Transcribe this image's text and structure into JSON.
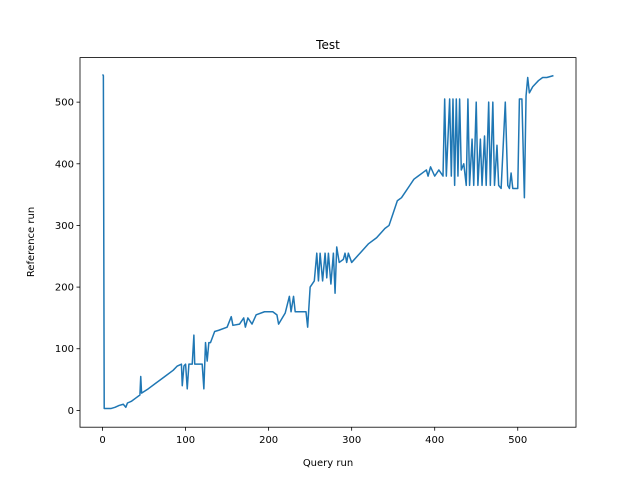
{
  "chart_data": {
    "type": "line",
    "title": "Test",
    "x_label": "Query run",
    "y_label": "Reference run",
    "x": [
      0,
      1,
      2,
      10,
      15,
      20,
      25,
      28,
      30,
      35,
      40,
      45,
      46,
      47,
      55,
      65,
      75,
      85,
      90,
      95,
      96,
      98,
      100,
      102,
      104,
      108,
      110,
      111,
      120,
      122,
      124,
      126,
      128,
      130,
      135,
      140,
      150,
      155,
      157,
      165,
      170,
      172,
      175,
      180,
      185,
      195,
      205,
      210,
      212,
      220,
      225,
      227,
      230,
      232,
      240,
      245,
      247,
      250,
      255,
      258,
      260,
      262,
      265,
      268,
      270,
      272,
      275,
      278,
      280,
      282,
      285,
      290,
      292,
      294,
      296,
      300,
      310,
      320,
      330,
      340,
      345,
      350,
      355,
      360,
      365,
      370,
      375,
      380,
      385,
      390,
      392,
      395,
      400,
      405,
      410,
      412,
      414,
      418,
      420,
      422,
      424,
      426,
      428,
      430,
      432,
      435,
      438,
      440,
      442,
      445,
      447,
      450,
      452,
      455,
      457,
      460,
      462,
      465,
      467,
      470,
      472,
      475,
      477,
      480,
      485,
      488,
      490,
      492,
      494,
      500,
      502,
      505,
      508,
      510,
      512,
      514,
      518,
      525,
      530,
      535,
      543
    ],
    "series": [
      {
        "name": "Reference run",
        "color": "#1f77b4",
        "values": [
          545,
          543,
          3,
          3,
          5,
          8,
          10,
          5,
          12,
          15,
          20,
          25,
          55,
          28,
          35,
          45,
          55,
          65,
          72,
          75,
          40,
          72,
          75,
          35,
          75,
          75,
          122,
          75,
          75,
          35,
          110,
          80,
          110,
          110,
          128,
          130,
          135,
          152,
          138,
          140,
          150,
          135,
          150,
          140,
          155,
          160,
          160,
          155,
          140,
          158,
          185,
          160,
          185,
          160,
          160,
          160,
          135,
          200,
          210,
          255,
          210,
          255,
          210,
          255,
          215,
          255,
          205,
          255,
          190,
          265,
          240,
          245,
          255,
          240,
          255,
          240,
          255,
          270,
          280,
          295,
          300,
          320,
          340,
          345,
          355,
          365,
          375,
          380,
          385,
          390,
          380,
          395,
          380,
          390,
          380,
          505,
          380,
          505,
          380,
          505,
          365,
          505,
          380,
          505,
          390,
          400,
          365,
          505,
          365,
          440,
          365,
          500,
          365,
          440,
          365,
          445,
          365,
          500,
          365,
          500,
          365,
          430,
          365,
          360,
          500,
          365,
          360,
          385,
          360,
          360,
          505,
          505,
          345,
          510,
          540,
          515,
          525,
          535,
          540,
          540,
          543
        ]
      }
    ],
    "xlim": [
      -27.15,
      570.15
    ],
    "ylim": [
      -27.25,
      572.25
    ],
    "xticks": [
      0,
      100,
      200,
      300,
      400,
      500
    ],
    "yticks": [
      0,
      100,
      200,
      300,
      400,
      500
    ],
    "grid": false
  }
}
